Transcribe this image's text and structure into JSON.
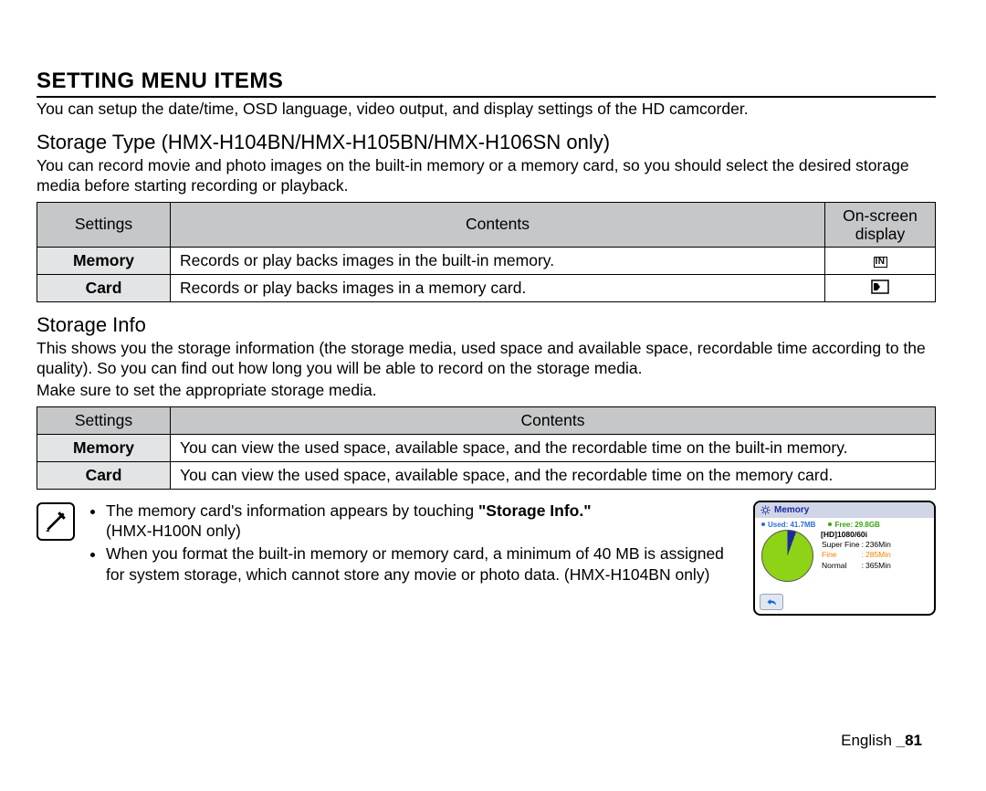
{
  "page": {
    "title": "SETTING MENU ITEMS",
    "intro": "You can setup the date/time, OSD language, video output, and display settings of the HD camcorder."
  },
  "storage_type": {
    "heading": "Storage Type (HMX-H104BN/HMX-H105BN/HMX-H106SN only)",
    "body": "You can record movie and photo images on the built-in memory or a memory card, so you should select the desired storage media before starting recording or playback.",
    "table": {
      "headers": {
        "settings": "Settings",
        "contents": "Contents",
        "osd": "On-screen display"
      },
      "rows": [
        {
          "setting": "Memory",
          "content": "Records or play backs images in the built-in memory.",
          "icon": "IN"
        },
        {
          "setting": "Card",
          "content": "Records or play backs images in a memory card.",
          "icon": "card"
        }
      ]
    }
  },
  "storage_info": {
    "heading": "Storage Info",
    "body1": "This shows you the storage information (the storage media, used space and available space, recordable time according to the quality). So you can find out how long you will be able to record on the storage media.",
    "body2": "Make sure to set the appropriate storage media.",
    "table": {
      "headers": {
        "settings": "Settings",
        "contents": "Contents"
      },
      "rows": [
        {
          "setting": "Memory",
          "content": "You can view the used space, available space, and the recordable time on the built-in memory."
        },
        {
          "setting": "Card",
          "content": "You can view the used space, available space, and the recordable time on the memory card."
        }
      ]
    }
  },
  "notes": {
    "item1_prefix": "The memory card's information appears by touching ",
    "item1_bold": "\"Storage Info.\"",
    "item1_suffix": " (HMX-H100N only)",
    "item2": "When you format the built-in memory or memory card, a minimum of 40 MB is assigned for system storage, which cannot store any movie or photo data. (HMX-H104BN only)"
  },
  "screenshot": {
    "title": "Memory",
    "used": {
      "label": "Used: 41.7MB",
      "color": "#2a6fd6"
    },
    "free": {
      "label": "Free: 29.8GB",
      "color": "#34a50f"
    },
    "pie": {
      "free_color": "#8ed315",
      "used_color": "#1b2aa0",
      "used_deg": 20
    },
    "header": "[HD]1080/60i",
    "rows": [
      {
        "q": "Super Fine",
        "t": "236Min",
        "hl": false
      },
      {
        "q": "Fine",
        "t": "285Min",
        "hl": true,
        "color": "#ff7f00"
      },
      {
        "q": "Normal",
        "t": "365Min",
        "hl": false
      }
    ],
    "colors": {
      "top_bg": "#d0d6e6",
      "title_color": "#1b2aa0",
      "btn_bg": "#e0e7f2",
      "btn_border": "#9aa3b0",
      "back_arrow": "#1766d6"
    }
  },
  "footer": {
    "lang": "English ",
    "page": "_81"
  }
}
